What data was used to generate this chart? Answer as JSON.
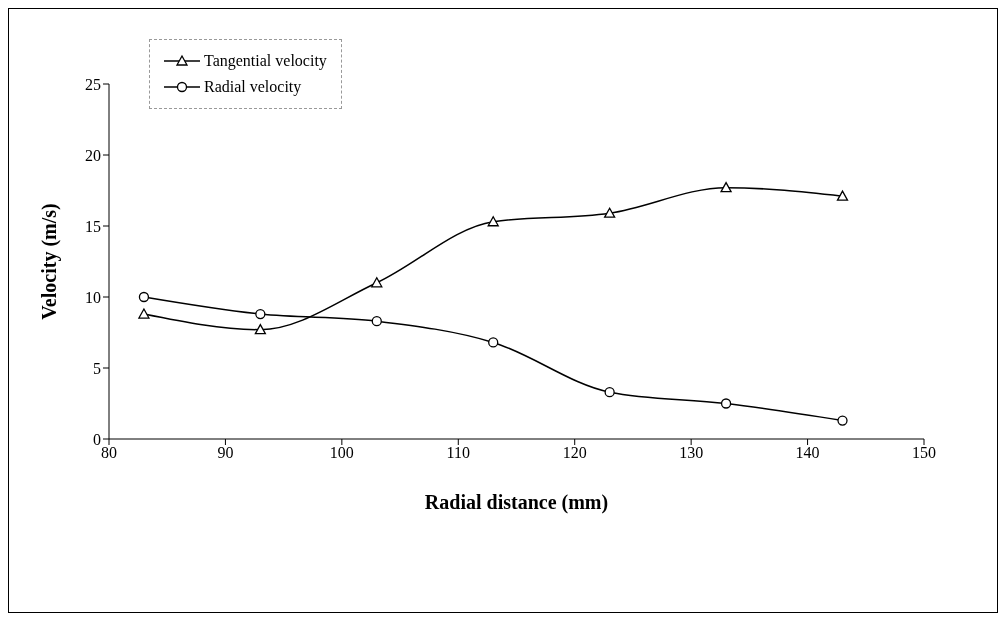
{
  "chart_data": {
    "type": "line",
    "xlabel": "Radial distance (mm)",
    "ylabel": "Velocity (m/s)",
    "xlim": [
      80,
      150
    ],
    "xticks": [
      80,
      90,
      100,
      110,
      120,
      130,
      140,
      150
    ],
    "ylim": [
      0,
      25
    ],
    "yticks": [
      0,
      5,
      10,
      15,
      20,
      25
    ],
    "grid": false,
    "legend": "top left",
    "series": [
      {
        "name": "Tangential velocity",
        "color": "#000000",
        "marker": "triangle",
        "x": [
          83,
          93,
          103,
          113,
          123,
          133,
          143
        ],
        "values": [
          8.8,
          7.7,
          11.0,
          15.3,
          15.9,
          17.7,
          17.1
        ]
      },
      {
        "name": "Radial velocity",
        "color": "#000000",
        "marker": "circle",
        "x": [
          83,
          93,
          103,
          113,
          123,
          133,
          143
        ],
        "values": [
          10.0,
          8.8,
          8.3,
          6.8,
          3.3,
          2.5,
          1.3
        ]
      }
    ]
  }
}
